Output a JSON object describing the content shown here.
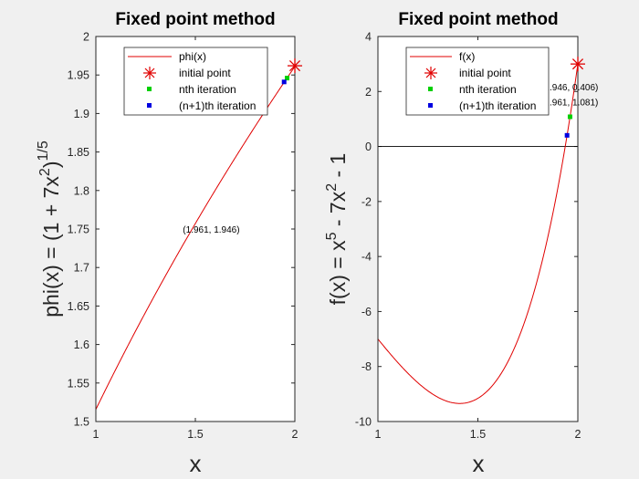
{
  "chart_data": [
    {
      "type": "line",
      "title": "Fixed point method",
      "xlabel": "x",
      "ylabel_base": "phi(x) = (1 + 7x",
      "ylabel_sup1": "2",
      "ylabel_mid": ")",
      "ylabel_sup2": "1/5",
      "xlim": [
        1,
        2
      ],
      "ylim": [
        1.5,
        2
      ],
      "xticks": [
        1,
        1.5,
        2
      ],
      "xtick_labels": [
        "1",
        "1.5",
        "2"
      ],
      "yticks": [
        1.5,
        1.55,
        1.6,
        1.65,
        1.7,
        1.75,
        1.8,
        1.85,
        1.9,
        1.95,
        2
      ],
      "ytick_labels": [
        "1.5",
        "1.55",
        "1.6",
        "1.65",
        "1.7",
        "1.75",
        "1.8",
        "1.85",
        "1.9",
        "1.95",
        "2"
      ],
      "curve": {
        "name": "phi(x)",
        "function": "(1 + 7x^2)^(1/5)",
        "color": "#e00000"
      },
      "legend": [
        "phi(x)",
        "initial point",
        "nth iteration",
        "(n+1)th iteration"
      ],
      "initial_point": {
        "x": 2.0,
        "y": 1.962,
        "color": "#e00000"
      },
      "nth_iteration": {
        "x": 1.961,
        "y": 1.946,
        "color": "#00d000"
      },
      "n1th_iteration": {
        "x": 1.946,
        "y": 1.941,
        "color": "#0000e0"
      },
      "annotation": {
        "text": "(1.961, 1.946)",
        "x": 1.58,
        "y": 1.745
      }
    },
    {
      "type": "line",
      "title": "Fixed point method",
      "xlabel": "x",
      "ylabel_base": "f(x) = x",
      "ylabel_sup1": "5",
      "ylabel_mid": " - 7x",
      "ylabel_sup2": "2",
      "ylabel_tail": " - 1",
      "xlim": [
        1,
        2
      ],
      "ylim": [
        -10,
        4
      ],
      "xticks": [
        1,
        1.5,
        2
      ],
      "xtick_labels": [
        "1",
        "1.5",
        "2"
      ],
      "yticks": [
        -10,
        -8,
        -6,
        -4,
        -2,
        0,
        2,
        4
      ],
      "ytick_labels": [
        "-10",
        "-8",
        "-6",
        "-4",
        "-2",
        "0",
        "2",
        "4"
      ],
      "zero_line": true,
      "curve": {
        "name": "f(x)",
        "function": "x^5 - 7x^2 - 1",
        "color": "#e00000"
      },
      "legend": [
        "f(x)",
        "initial point",
        "nth iteration",
        "(n+1)th iteration"
      ],
      "initial_point": {
        "x": 2.0,
        "y": 3.0,
        "color": "#e00000"
      },
      "nth_iteration": {
        "x": 1.961,
        "y": 1.081,
        "color": "#00d000"
      },
      "n1th_iteration": {
        "x": 1.946,
        "y": 0.406,
        "color": "#0000e0"
      },
      "annotations": [
        {
          "text": "(1.946, 0.406)",
          "x": 1.96,
          "y": 2.05
        },
        {
          "text": "(1.961, 1.081)",
          "x": 1.96,
          "y": 1.5
        }
      ]
    }
  ]
}
